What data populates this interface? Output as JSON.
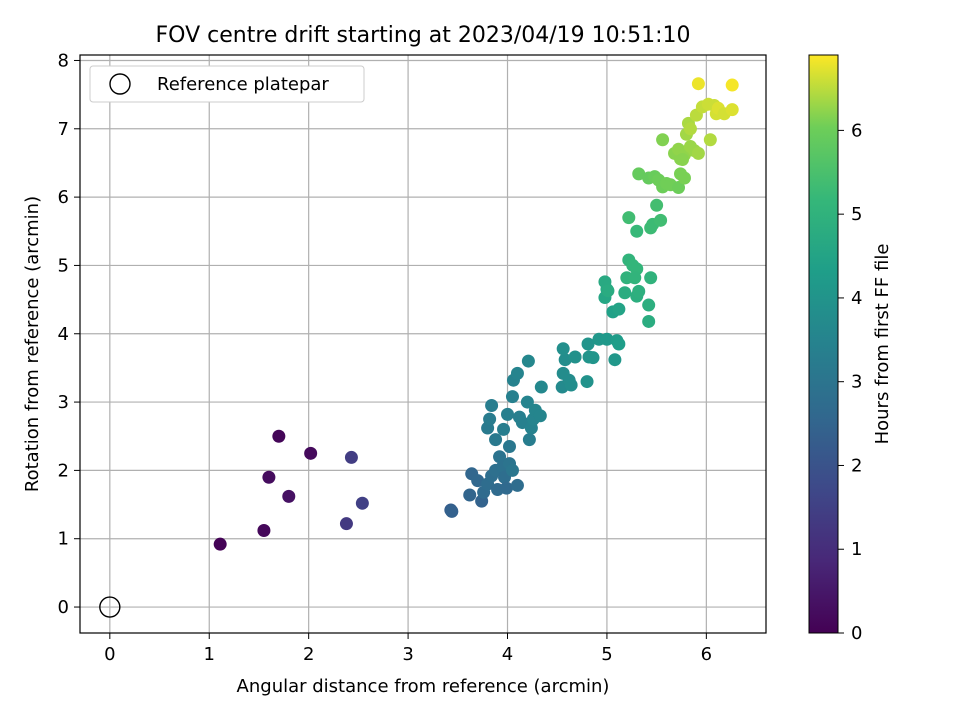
{
  "chart_data": {
    "type": "scatter",
    "title": "FOV centre drift starting at 2023/04/19 10:51:10",
    "xlabel": "Angular distance from reference (arcmin)",
    "ylabel": "Rotation from reference (arcmin)",
    "xlim": [
      -0.3,
      6.6
    ],
    "ylim": [
      -0.38,
      8.08
    ],
    "xticks": [
      0,
      1,
      2,
      3,
      4,
      5,
      6
    ],
    "yticks": [
      0,
      1,
      2,
      3,
      4,
      5,
      6,
      7,
      8
    ],
    "grid": true,
    "legend": {
      "position": "top-left",
      "entries": [
        "Reference platepar"
      ]
    },
    "colorbar": {
      "label": "Hours from first FF file",
      "colormap": "viridis",
      "range": [
        0,
        6.9
      ],
      "ticks": [
        0,
        1,
        2,
        3,
        4,
        5,
        6
      ]
    },
    "reference_point": {
      "x": 0,
      "y": 0,
      "label": "Reference platepar"
    },
    "points": [
      {
        "x": 1.11,
        "y": 0.92,
        "c": 0.05
      },
      {
        "x": 1.55,
        "y": 1.12,
        "c": 0.15
      },
      {
        "x": 1.6,
        "y": 1.9,
        "c": 0.25
      },
      {
        "x": 1.7,
        "y": 2.5,
        "c": 0.1
      },
      {
        "x": 1.8,
        "y": 1.62,
        "c": 0.35
      },
      {
        "x": 2.02,
        "y": 2.25,
        "c": 0.2
      },
      {
        "x": 2.38,
        "y": 1.22,
        "c": 1.3
      },
      {
        "x": 2.43,
        "y": 2.19,
        "c": 1.4
      },
      {
        "x": 2.54,
        "y": 1.52,
        "c": 1.5
      },
      {
        "x": 3.43,
        "y": 1.42,
        "c": 2.3
      },
      {
        "x": 3.44,
        "y": 1.4,
        "c": 2.4
      },
      {
        "x": 3.62,
        "y": 1.64,
        "c": 2.5
      },
      {
        "x": 3.64,
        "y": 1.95,
        "c": 2.55
      },
      {
        "x": 3.7,
        "y": 1.85,
        "c": 2.6
      },
      {
        "x": 3.74,
        "y": 1.55,
        "c": 2.45
      },
      {
        "x": 3.76,
        "y": 1.68,
        "c": 2.7
      },
      {
        "x": 3.8,
        "y": 1.8,
        "c": 2.75
      },
      {
        "x": 3.84,
        "y": 1.92,
        "c": 2.8
      },
      {
        "x": 3.88,
        "y": 2.0,
        "c": 2.85
      },
      {
        "x": 3.9,
        "y": 1.72,
        "c": 2.7
      },
      {
        "x": 3.92,
        "y": 2.2,
        "c": 2.95
      },
      {
        "x": 3.95,
        "y": 2.05,
        "c": 2.9
      },
      {
        "x": 3.97,
        "y": 1.9,
        "c": 2.8
      },
      {
        "x": 3.99,
        "y": 1.74,
        "c": 2.65
      },
      {
        "x": 4.02,
        "y": 2.1,
        "c": 3.0
      },
      {
        "x": 4.05,
        "y": 2.0,
        "c": 3.05
      },
      {
        "x": 4.1,
        "y": 1.78,
        "c": 2.75
      },
      {
        "x": 4.02,
        "y": 2.35,
        "c": 3.1
      },
      {
        "x": 3.88,
        "y": 2.45,
        "c": 3.15
      },
      {
        "x": 3.8,
        "y": 2.62,
        "c": 3.2
      },
      {
        "x": 3.82,
        "y": 2.75,
        "c": 3.25
      },
      {
        "x": 3.84,
        "y": 2.95,
        "c": 3.3
      },
      {
        "x": 3.96,
        "y": 2.6,
        "c": 3.3
      },
      {
        "x": 4.0,
        "y": 2.82,
        "c": 3.35
      },
      {
        "x": 4.05,
        "y": 3.08,
        "c": 3.4
      },
      {
        "x": 4.06,
        "y": 3.32,
        "c": 3.45
      },
      {
        "x": 4.1,
        "y": 3.42,
        "c": 3.5
      },
      {
        "x": 4.12,
        "y": 2.78,
        "c": 3.35
      },
      {
        "x": 4.15,
        "y": 2.7,
        "c": 3.4
      },
      {
        "x": 4.2,
        "y": 3.0,
        "c": 3.5
      },
      {
        "x": 4.22,
        "y": 2.45,
        "c": 3.3
      },
      {
        "x": 4.24,
        "y": 2.62,
        "c": 3.45
      },
      {
        "x": 4.26,
        "y": 2.75,
        "c": 3.5
      },
      {
        "x": 4.28,
        "y": 2.88,
        "c": 3.55
      },
      {
        "x": 4.33,
        "y": 2.8,
        "c": 3.55
      },
      {
        "x": 4.21,
        "y": 3.6,
        "c": 3.6
      },
      {
        "x": 4.34,
        "y": 3.22,
        "c": 3.65
      },
      {
        "x": 4.55,
        "y": 3.22,
        "c": 3.7
      },
      {
        "x": 4.56,
        "y": 3.42,
        "c": 3.75
      },
      {
        "x": 4.58,
        "y": 3.62,
        "c": 3.8
      },
      {
        "x": 4.56,
        "y": 3.78,
        "c": 3.85
      },
      {
        "x": 4.62,
        "y": 3.32,
        "c": 3.75
      },
      {
        "x": 4.64,
        "y": 3.25,
        "c": 3.8
      },
      {
        "x": 4.68,
        "y": 3.66,
        "c": 3.9
      },
      {
        "x": 4.8,
        "y": 3.3,
        "c": 3.95
      },
      {
        "x": 4.81,
        "y": 3.85,
        "c": 4.0
      },
      {
        "x": 4.82,
        "y": 3.66,
        "c": 4.0
      },
      {
        "x": 4.86,
        "y": 3.65,
        "c": 4.05
      },
      {
        "x": 4.92,
        "y": 3.92,
        "c": 4.1
      },
      {
        "x": 5.0,
        "y": 3.92,
        "c": 4.15
      },
      {
        "x": 5.08,
        "y": 3.62,
        "c": 4.1
      },
      {
        "x": 5.1,
        "y": 3.9,
        "c": 4.25
      },
      {
        "x": 5.12,
        "y": 3.85,
        "c": 4.3
      },
      {
        "x": 5.06,
        "y": 4.32,
        "c": 4.4
      },
      {
        "x": 5.12,
        "y": 4.36,
        "c": 4.5
      },
      {
        "x": 4.98,
        "y": 4.53,
        "c": 4.6
      },
      {
        "x": 5.0,
        "y": 4.65,
        "c": 4.65
      },
      {
        "x": 4.98,
        "y": 4.76,
        "c": 4.7
      },
      {
        "x": 5.01,
        "y": 4.63,
        "c": 4.75
      },
      {
        "x": 5.18,
        "y": 4.6,
        "c": 4.8
      },
      {
        "x": 5.3,
        "y": 4.55,
        "c": 4.85
      },
      {
        "x": 5.32,
        "y": 4.62,
        "c": 4.9
      },
      {
        "x": 5.42,
        "y": 4.18,
        "c": 4.8
      },
      {
        "x": 5.42,
        "y": 4.42,
        "c": 4.85
      },
      {
        "x": 5.44,
        "y": 4.82,
        "c": 5.0
      },
      {
        "x": 5.2,
        "y": 4.82,
        "c": 5.0
      },
      {
        "x": 5.22,
        "y": 5.08,
        "c": 5.05
      },
      {
        "x": 5.26,
        "y": 5.0,
        "c": 5.1
      },
      {
        "x": 5.3,
        "y": 4.95,
        "c": 5.1
      },
      {
        "x": 5.28,
        "y": 4.82,
        "c": 5.05
      },
      {
        "x": 5.3,
        "y": 5.5,
        "c": 5.2
      },
      {
        "x": 5.44,
        "y": 5.55,
        "c": 5.3
      },
      {
        "x": 5.46,
        "y": 5.6,
        "c": 5.3
      },
      {
        "x": 5.54,
        "y": 5.66,
        "c": 5.35
      },
      {
        "x": 5.5,
        "y": 5.88,
        "c": 5.4
      },
      {
        "x": 5.22,
        "y": 5.7,
        "c": 5.35
      },
      {
        "x": 5.32,
        "y": 6.34,
        "c": 5.9
      },
      {
        "x": 5.42,
        "y": 6.28,
        "c": 5.9
      },
      {
        "x": 5.48,
        "y": 6.3,
        "c": 5.95
      },
      {
        "x": 5.52,
        "y": 6.25,
        "c": 6.0
      },
      {
        "x": 5.56,
        "y": 6.15,
        "c": 6.0
      },
      {
        "x": 5.6,
        "y": 6.2,
        "c": 6.05
      },
      {
        "x": 5.64,
        "y": 6.18,
        "c": 6.05
      },
      {
        "x": 5.72,
        "y": 6.14,
        "c": 6.0
      },
      {
        "x": 5.74,
        "y": 6.34,
        "c": 6.1
      },
      {
        "x": 5.78,
        "y": 6.28,
        "c": 6.1
      },
      {
        "x": 5.56,
        "y": 6.84,
        "c": 6.15
      },
      {
        "x": 5.68,
        "y": 6.64,
        "c": 6.2
      },
      {
        "x": 5.74,
        "y": 6.56,
        "c": 6.2
      },
      {
        "x": 5.72,
        "y": 6.7,
        "c": 6.25
      },
      {
        "x": 5.78,
        "y": 6.62,
        "c": 6.25
      },
      {
        "x": 5.76,
        "y": 6.55,
        "c": 6.2
      },
      {
        "x": 5.84,
        "y": 6.74,
        "c": 6.3
      },
      {
        "x": 5.88,
        "y": 6.68,
        "c": 6.3
      },
      {
        "x": 5.92,
        "y": 6.64,
        "c": 6.35
      },
      {
        "x": 5.8,
        "y": 6.92,
        "c": 6.35
      },
      {
        "x": 5.82,
        "y": 7.08,
        "c": 6.4
      },
      {
        "x": 5.84,
        "y": 7.0,
        "c": 6.45
      },
      {
        "x": 6.04,
        "y": 6.84,
        "c": 6.45
      },
      {
        "x": 5.9,
        "y": 7.2,
        "c": 6.5
      },
      {
        "x": 5.96,
        "y": 7.32,
        "c": 6.55
      },
      {
        "x": 6.02,
        "y": 7.36,
        "c": 6.6
      },
      {
        "x": 6.08,
        "y": 7.34,
        "c": 6.6
      },
      {
        "x": 6.1,
        "y": 7.22,
        "c": 6.65
      },
      {
        "x": 6.12,
        "y": 7.3,
        "c": 6.7
      },
      {
        "x": 6.18,
        "y": 7.22,
        "c": 6.65
      },
      {
        "x": 6.26,
        "y": 7.28,
        "c": 6.7
      },
      {
        "x": 5.92,
        "y": 7.66,
        "c": 6.8
      },
      {
        "x": 6.26,
        "y": 7.64,
        "c": 6.85
      }
    ]
  }
}
